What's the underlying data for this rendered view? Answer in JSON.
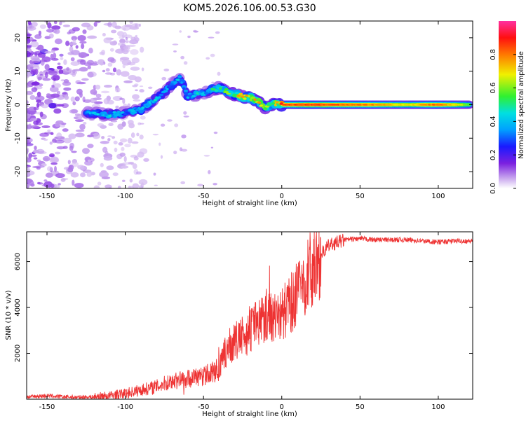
{
  "title": "KOM5.2026.106.00.53.G30",
  "colors": {
    "snr_line": "#ee3333",
    "axis": "#000000",
    "background": "#ffffff"
  },
  "chart_data": [
    {
      "type": "heatmap",
      "title": "KOM5.2026.106.00.53.G30",
      "xlabel": "Height of straight line (km)",
      "ylabel": "Frequency (Hz)",
      "xlim": [
        -163,
        122
      ],
      "ylim": [
        -25,
        25
      ],
      "xticks": [
        -150,
        -100,
        -50,
        0,
        50,
        100
      ],
      "yticks": [
        -20,
        -10,
        0,
        10,
        20
      ],
      "colorbar": {
        "label": "Normalized spectral amplitude",
        "range": [
          0,
          1
        ],
        "ticks": [
          0.0,
          0.2,
          0.4,
          0.6,
          0.8
        ],
        "colormap": "rainbow (white-violet-blue-cyan-green-yellow-orange-red-pink)"
      },
      "ridge": [
        {
          "x": -125,
          "freq": -2.5,
          "amp": 0.35
        },
        {
          "x": -110,
          "freq": -3,
          "amp": 0.4
        },
        {
          "x": -100,
          "freq": -2.5,
          "amp": 0.35
        },
        {
          "x": -90,
          "freq": -1.5,
          "amp": 0.4
        },
        {
          "x": -85,
          "freq": 0,
          "amp": 0.45
        },
        {
          "x": -80,
          "freq": 2,
          "amp": 0.4
        },
        {
          "x": -75,
          "freq": 4,
          "amp": 0.35
        },
        {
          "x": -70,
          "freq": 6,
          "amp": 0.4
        },
        {
          "x": -65,
          "freq": 8,
          "amp": 0.35
        },
        {
          "x": -60,
          "freq": 2.5,
          "amp": 0.35
        },
        {
          "x": -55,
          "freq": 3,
          "amp": 0.4
        },
        {
          "x": -50,
          "freq": 3.5,
          "amp": 0.4
        },
        {
          "x": -45,
          "freq": 4.5,
          "amp": 0.45
        },
        {
          "x": -40,
          "freq": 5,
          "amp": 0.5
        },
        {
          "x": -35,
          "freq": 4,
          "amp": 0.55
        },
        {
          "x": -30,
          "freq": 3,
          "amp": 0.6
        },
        {
          "x": -25,
          "freq": 2.5,
          "amp": 0.7
        },
        {
          "x": -20,
          "freq": 2,
          "amp": 0.65
        },
        {
          "x": -15,
          "freq": 1,
          "amp": 0.7
        },
        {
          "x": -10,
          "freq": -1,
          "amp": 0.6
        },
        {
          "x": -5,
          "freq": 0.5,
          "amp": 0.6
        },
        {
          "x": 0,
          "freq": 0,
          "amp": 0.85
        },
        {
          "x": 20,
          "freq": 0,
          "amp": 0.9
        },
        {
          "x": 40,
          "freq": 0,
          "amp": 0.85
        },
        {
          "x": 60,
          "freq": 0,
          "amp": 0.8
        },
        {
          "x": 80,
          "freq": 0,
          "amp": 0.7
        },
        {
          "x": 100,
          "freq": 0,
          "amp": 0.85
        },
        {
          "x": 120,
          "freq": 0,
          "amp": 0.6
        }
      ]
    },
    {
      "type": "line",
      "xlabel": "Height of straight line (km)",
      "ylabel": "SNR (10 * v/v)",
      "xlim": [
        -163,
        122
      ],
      "ylim": [
        0,
        7300
      ],
      "xticks": [
        -150,
        -100,
        -50,
        0,
        50,
        100
      ],
      "yticks": [
        2000,
        4000,
        6000
      ],
      "series": [
        {
          "name": "SNR",
          "x": [
            -163,
            -150,
            -140,
            -130,
            -120,
            -110,
            -100,
            -90,
            -80,
            -70,
            -60,
            -50,
            -40,
            -35,
            -30,
            -25,
            -20,
            -15,
            -10,
            -5,
            0,
            5,
            10,
            15,
            20,
            25,
            30,
            40,
            50,
            60,
            70,
            80,
            90,
            100,
            110,
            122
          ],
          "values": [
            100,
            150,
            100,
            80,
            100,
            150,
            250,
            400,
            550,
            800,
            900,
            1000,
            1300,
            2200,
            2500,
            2700,
            3000,
            3400,
            3700,
            3600,
            3700,
            4100,
            4600,
            5200,
            5800,
            6300,
            6700,
            6950,
            7000,
            6950,
            6950,
            6950,
            6900,
            6850,
            6900,
            6900
          ]
        }
      ]
    }
  ]
}
